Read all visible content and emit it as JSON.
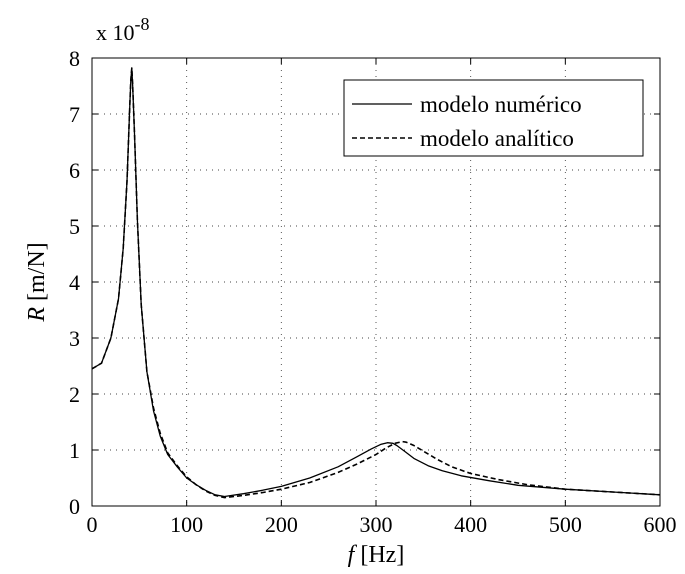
{
  "chart_data": {
    "type": "line",
    "exponent": {
      "prefix": "x 10",
      "power": "-8"
    },
    "xlabel": {
      "italic": "f",
      "rest": "[Hz]"
    },
    "ylabel": {
      "italic": "R",
      "rest": "[m/N]"
    },
    "xlim": [
      0,
      600
    ],
    "ylim": [
      0,
      8
    ],
    "xticks": [
      0,
      100,
      200,
      300,
      400,
      500,
      600
    ],
    "yticks": [
      0,
      1,
      2,
      3,
      4,
      5,
      6,
      7,
      8
    ],
    "grid": true,
    "legend_position": "top-right",
    "series": [
      {
        "name": "modelo numérico",
        "style": "solid",
        "color": "#000000",
        "x": [
          0,
          10,
          20,
          28,
          33,
          37,
          40,
          41,
          42,
          43,
          45,
          48,
          52,
          58,
          65,
          72,
          80,
          90,
          100,
          110,
          120,
          130,
          140,
          160,
          180,
          200,
          230,
          260,
          280,
          295,
          305,
          312,
          318,
          322,
          330,
          340,
          355,
          370,
          390,
          420,
          450,
          500,
          550,
          600
        ],
        "y": [
          2.45,
          2.55,
          3.0,
          3.7,
          4.6,
          5.8,
          7.2,
          7.6,
          7.82,
          7.5,
          6.6,
          5.1,
          3.6,
          2.4,
          1.7,
          1.25,
          0.92,
          0.7,
          0.5,
          0.38,
          0.28,
          0.2,
          0.17,
          0.22,
          0.28,
          0.35,
          0.5,
          0.7,
          0.88,
          1.02,
          1.1,
          1.13,
          1.12,
          1.08,
          0.98,
          0.85,
          0.72,
          0.63,
          0.54,
          0.45,
          0.37,
          0.3,
          0.25,
          0.2
        ]
      },
      {
        "name": "modelo analítico",
        "style": "dashed",
        "color": "#000000",
        "x": [
          0,
          10,
          20,
          28,
          33,
          37,
          40,
          41,
          42,
          43,
          45,
          48,
          52,
          58,
          65,
          72,
          80,
          90,
          100,
          110,
          120,
          130,
          140,
          160,
          180,
          200,
          230,
          260,
          280,
          300,
          310,
          320,
          328,
          332,
          340,
          350,
          365,
          380,
          400,
          430,
          460,
          500,
          550,
          600
        ],
        "y": [
          2.45,
          2.55,
          3.0,
          3.7,
          4.6,
          5.8,
          7.2,
          7.6,
          7.82,
          7.5,
          6.6,
          5.1,
          3.6,
          2.4,
          1.75,
          1.3,
          0.95,
          0.72,
          0.52,
          0.38,
          0.27,
          0.19,
          0.15,
          0.19,
          0.24,
          0.3,
          0.42,
          0.6,
          0.75,
          0.92,
          1.03,
          1.12,
          1.15,
          1.14,
          1.08,
          0.98,
          0.83,
          0.7,
          0.58,
          0.47,
          0.38,
          0.3,
          0.25,
          0.2
        ]
      }
    ]
  }
}
